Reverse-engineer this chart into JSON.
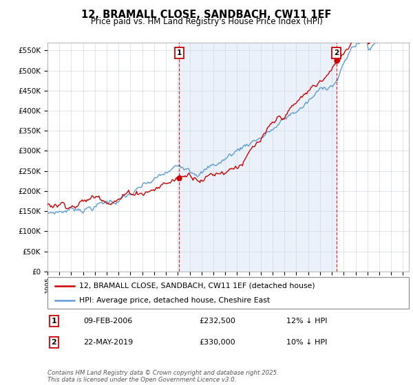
{
  "title": "12, BRAMALL CLOSE, SANDBACH, CW11 1EF",
  "subtitle": "Price paid vs. HM Land Registry's House Price Index (HPI)",
  "ylabel_ticks": [
    "£0",
    "£50K",
    "£100K",
    "£150K",
    "£200K",
    "£250K",
    "£300K",
    "£350K",
    "£400K",
    "£450K",
    "£500K",
    "£550K"
  ],
  "ytick_vals": [
    0,
    50000,
    100000,
    150000,
    200000,
    250000,
    300000,
    350000,
    400000,
    450000,
    500000,
    550000
  ],
  "ylim": [
    0,
    570000
  ],
  "xlim_start": 1995.0,
  "xlim_end": 2025.5,
  "hpi_color": "#5b9bd5",
  "hpi_fill_color": "#dce9f5",
  "price_color": "#cc0000",
  "sale1_x": 2006.11,
  "sale1_y": 232500,
  "sale2_x": 2019.39,
  "sale2_y": 330000,
  "legend_line1": "12, BRAMALL CLOSE, SANDBACH, CW11 1EF (detached house)",
  "legend_line2": "HPI: Average price, detached house, Cheshire East",
  "annot1_date": "09-FEB-2006",
  "annot1_price": "£232,500",
  "annot1_hpi": "12% ↓ HPI",
  "annot2_date": "22-MAY-2019",
  "annot2_price": "£330,000",
  "annot2_hpi": "10% ↓ HPI",
  "footer": "Contains HM Land Registry data © Crown copyright and database right 2025.\nThis data is licensed under the Open Government Licence v3.0.",
  "background_color": "#ffffff",
  "grid_color": "#d0d8e8"
}
